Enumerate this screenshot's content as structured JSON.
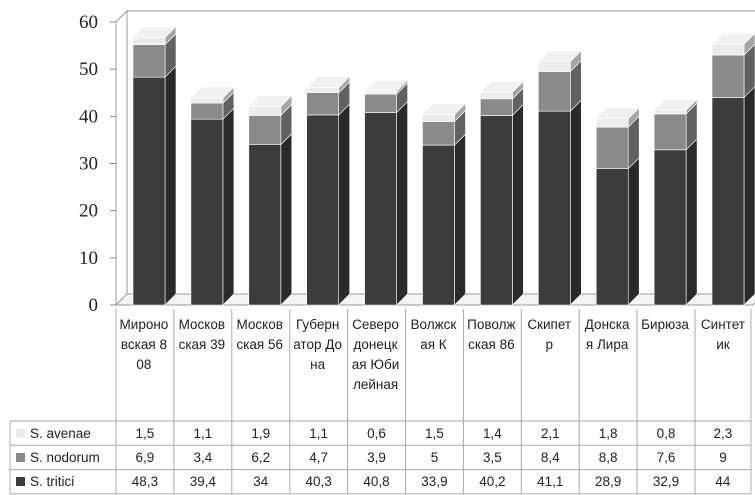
{
  "chart_data": {
    "type": "bar",
    "stacked": true,
    "style": "3d",
    "ylim": [
      0,
      60
    ],
    "yticks": [
      0,
      10,
      20,
      30,
      40,
      50,
      60
    ],
    "grid": false,
    "legend": "data-table-left",
    "categories": [
      "Мироновская 808",
      "Московская 39",
      "Московская 56",
      "Губернатор Дона",
      "Северодонецкая Юбилейная",
      "Волжская К",
      "Поволжская 86",
      "Скипетр",
      "Донская Лира",
      "Бирюза",
      "Синтетик"
    ],
    "series": [
      {
        "name": "S. tritici",
        "color": "#3c3c3c",
        "values": [
          48.3,
          39.4,
          34,
          40.3,
          40.8,
          33.9,
          40.2,
          41.1,
          28.9,
          32.9,
          44
        ]
      },
      {
        "name": "S. nodorum",
        "color": "#8a8a8a",
        "values": [
          6.9,
          3.4,
          6.2,
          4.7,
          3.9,
          5,
          3.5,
          8.4,
          8.8,
          7.6,
          9
        ]
      },
      {
        "name": "S. avenae",
        "color": "#ececec",
        "values": [
          1.5,
          1.1,
          1.9,
          1.1,
          0.6,
          1.5,
          1.4,
          2.1,
          1.8,
          0.8,
          2.3
        ]
      }
    ],
    "table_rows": [
      {
        "name": "S. avenae",
        "color": "#ececec",
        "cells": [
          "1,5",
          "1,1",
          "1,9",
          "1,1",
          "0,6",
          "1,5",
          "1,4",
          "2,1",
          "1,8",
          "0,8",
          "2,3"
        ]
      },
      {
        "name": "S. nodorum",
        "color": "#8a8a8a",
        "cells": [
          "6,9",
          "3,4",
          "6,2",
          "4,7",
          "3,9",
          "5",
          "3,5",
          "8,4",
          "8,8",
          "7,6",
          "9"
        ]
      },
      {
        "name": "S. tritici",
        "color": "#3c3c3c",
        "cells": [
          "48,3",
          "39,4",
          "34",
          "40,3",
          "40,8",
          "33,9",
          "40,2",
          "41,1",
          "28,9",
          "32,9",
          "44"
        ]
      }
    ]
  }
}
